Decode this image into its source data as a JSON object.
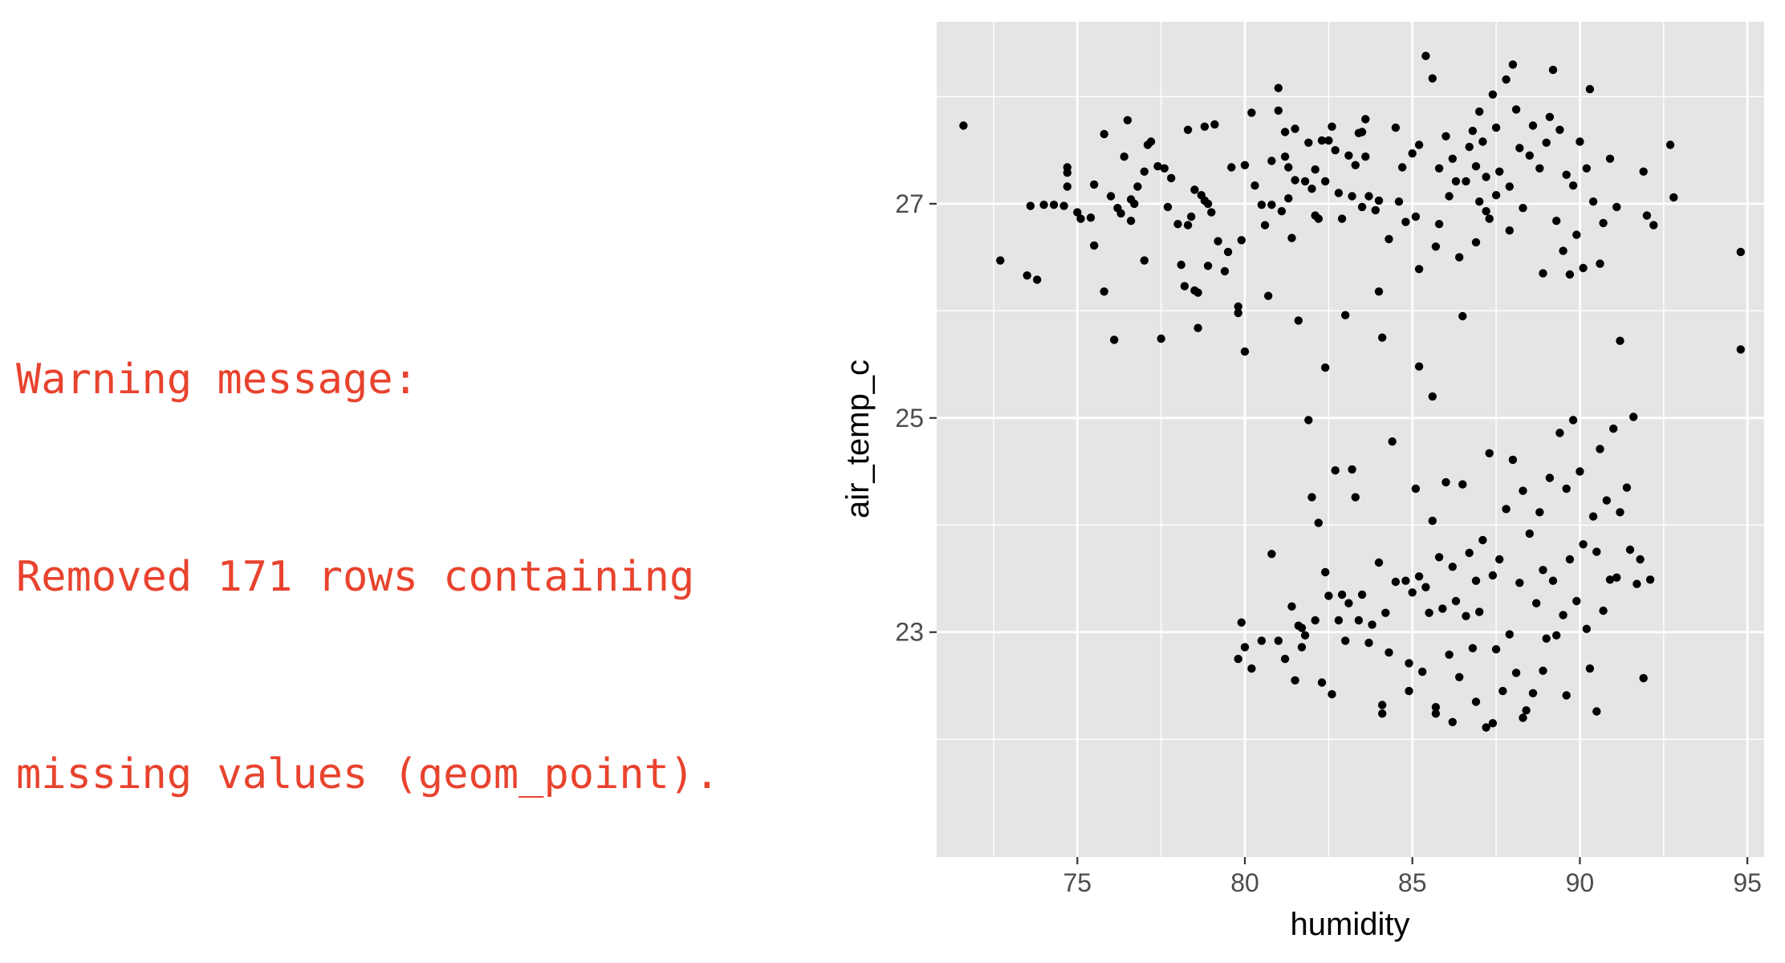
{
  "warning": {
    "line1": "Warning message:",
    "line2": "Removed 171 rows containing",
    "line3": "missing values (geom_point)."
  },
  "colors": {
    "warning_text": "#e8432e",
    "panel_background": "#e5e5e5",
    "grid": "#ffffff",
    "points": "#000000"
  },
  "chart_data": {
    "type": "scatter",
    "xlabel": "humidity",
    "ylabel": "air_temp_c",
    "xlim": [
      70.8,
      95.5
    ],
    "ylim": [
      20.9,
      28.7
    ],
    "xticks": [
      75,
      80,
      85,
      90,
      95
    ],
    "yticks": [
      23,
      25,
      27
    ],
    "grid": true,
    "series": [
      {
        "points": [
          [
            71.6,
            27.73
          ],
          [
            72.7,
            26.47
          ],
          [
            73.5,
            26.33
          ],
          [
            73.6,
            26.98
          ],
          [
            73.8,
            26.29
          ],
          [
            74.0,
            26.99
          ],
          [
            74.3,
            26.99
          ],
          [
            74.6,
            26.98
          ],
          [
            74.7,
            27.29
          ],
          [
            74.7,
            27.34
          ],
          [
            74.7,
            27.16
          ],
          [
            75.0,
            26.92
          ],
          [
            75.1,
            26.86
          ],
          [
            75.4,
            26.87
          ],
          [
            75.5,
            27.18
          ],
          [
            75.5,
            26.61
          ],
          [
            75.8,
            27.65
          ],
          [
            75.8,
            26.18
          ],
          [
            76.0,
            27.07
          ],
          [
            76.1,
            25.73
          ],
          [
            76.2,
            26.96
          ],
          [
            76.3,
            26.91
          ],
          [
            76.4,
            27.44
          ],
          [
            76.5,
            27.78
          ],
          [
            76.6,
            27.04
          ],
          [
            76.6,
            26.84
          ],
          [
            76.7,
            27.0
          ],
          [
            76.8,
            27.16
          ],
          [
            77.0,
            26.47
          ],
          [
            77.0,
            27.3
          ],
          [
            77.1,
            27.55
          ],
          [
            77.2,
            27.58
          ],
          [
            77.4,
            27.35
          ],
          [
            77.5,
            25.74
          ],
          [
            77.6,
            27.33
          ],
          [
            77.7,
            26.97
          ],
          [
            77.8,
            27.24
          ],
          [
            78.0,
            26.81
          ],
          [
            78.1,
            26.43
          ],
          [
            78.2,
            26.23
          ],
          [
            78.3,
            27.69
          ],
          [
            78.3,
            26.8
          ],
          [
            78.4,
            26.88
          ],
          [
            78.5,
            26.19
          ],
          [
            78.5,
            27.13
          ],
          [
            78.6,
            26.17
          ],
          [
            78.6,
            25.84
          ],
          [
            78.7,
            27.08
          ],
          [
            78.8,
            27.72
          ],
          [
            78.8,
            27.03
          ],
          [
            78.9,
            26.42
          ],
          [
            78.9,
            27.0
          ],
          [
            79.0,
            26.92
          ],
          [
            79.1,
            27.74
          ],
          [
            79.2,
            26.65
          ],
          [
            79.4,
            26.37
          ],
          [
            79.5,
            26.55
          ],
          [
            79.6,
            27.34
          ],
          [
            79.8,
            26.04
          ],
          [
            79.8,
            25.98
          ],
          [
            79.9,
            26.66
          ],
          [
            80.0,
            27.36
          ],
          [
            80.0,
            25.62
          ],
          [
            80.2,
            27.85
          ],
          [
            80.3,
            27.17
          ],
          [
            80.5,
            26.99
          ],
          [
            80.6,
            26.8
          ],
          [
            80.7,
            26.14
          ],
          [
            80.8,
            27.4
          ],
          [
            80.8,
            26.99
          ],
          [
            81.0,
            27.87
          ],
          [
            81.0,
            28.08
          ],
          [
            81.1,
            26.93
          ],
          [
            81.2,
            27.67
          ],
          [
            81.2,
            27.44
          ],
          [
            81.3,
            27.05
          ],
          [
            81.3,
            27.34
          ],
          [
            81.4,
            26.68
          ],
          [
            81.5,
            27.22
          ],
          [
            81.5,
            27.7
          ],
          [
            81.6,
            25.91
          ],
          [
            81.8,
            27.21
          ],
          [
            81.9,
            27.57
          ],
          [
            82.0,
            27.14
          ],
          [
            82.1,
            26.89
          ],
          [
            82.1,
            27.32
          ],
          [
            82.2,
            26.86
          ],
          [
            82.3,
            27.59
          ],
          [
            82.4,
            27.21
          ],
          [
            82.4,
            25.47
          ],
          [
            82.5,
            27.59
          ],
          [
            82.6,
            27.72
          ],
          [
            82.7,
            27.5
          ],
          [
            82.8,
            27.1
          ],
          [
            82.9,
            26.86
          ],
          [
            83.0,
            25.96
          ],
          [
            83.1,
            27.45
          ],
          [
            83.2,
            27.07
          ],
          [
            83.3,
            27.36
          ],
          [
            83.4,
            27.66
          ],
          [
            83.5,
            26.97
          ],
          [
            83.5,
            27.67
          ],
          [
            83.6,
            27.44
          ],
          [
            83.6,
            27.79
          ],
          [
            83.7,
            27.07
          ],
          [
            83.9,
            26.94
          ],
          [
            84.0,
            27.03
          ],
          [
            84.0,
            26.18
          ],
          [
            84.1,
            25.75
          ],
          [
            84.3,
            26.67
          ],
          [
            84.5,
            27.71
          ],
          [
            84.6,
            27.02
          ],
          [
            84.7,
            27.34
          ],
          [
            84.8,
            26.83
          ],
          [
            85.0,
            27.47
          ],
          [
            85.1,
            26.88
          ],
          [
            85.2,
            26.39
          ],
          [
            85.2,
            25.48
          ],
          [
            85.2,
            27.55
          ],
          [
            85.4,
            28.38
          ],
          [
            85.6,
            28.17
          ],
          [
            85.6,
            25.2
          ],
          [
            85.7,
            26.6
          ],
          [
            85.8,
            27.33
          ],
          [
            85.8,
            26.81
          ],
          [
            86.0,
            27.63
          ],
          [
            86.1,
            27.07
          ],
          [
            86.2,
            27.42
          ],
          [
            86.3,
            27.21
          ],
          [
            86.4,
            26.5
          ],
          [
            86.5,
            25.95
          ],
          [
            86.6,
            27.21
          ],
          [
            86.7,
            27.53
          ],
          [
            86.8,
            27.68
          ],
          [
            86.9,
            26.64
          ],
          [
            86.9,
            27.35
          ],
          [
            87.0,
            27.86
          ],
          [
            87.0,
            27.02
          ],
          [
            87.1,
            27.58
          ],
          [
            87.2,
            26.93
          ],
          [
            87.2,
            27.25
          ],
          [
            87.3,
            26.86
          ],
          [
            87.4,
            28.02
          ],
          [
            87.5,
            27.08
          ],
          [
            87.5,
            27.71
          ],
          [
            87.6,
            27.3
          ],
          [
            87.8,
            28.16
          ],
          [
            87.9,
            27.16
          ],
          [
            87.9,
            26.75
          ],
          [
            88.0,
            28.3
          ],
          [
            88.1,
            27.88
          ],
          [
            88.2,
            27.52
          ],
          [
            88.3,
            26.96
          ],
          [
            88.5,
            27.45
          ],
          [
            88.6,
            27.73
          ],
          [
            88.8,
            27.33
          ],
          [
            88.9,
            26.35
          ],
          [
            89.0,
            27.57
          ],
          [
            89.1,
            27.81
          ],
          [
            89.2,
            28.25
          ],
          [
            89.3,
            26.84
          ],
          [
            89.4,
            27.69
          ],
          [
            89.5,
            26.56
          ],
          [
            89.6,
            27.27
          ],
          [
            89.7,
            26.34
          ],
          [
            89.8,
            27.17
          ],
          [
            89.9,
            26.71
          ],
          [
            90.0,
            27.58
          ],
          [
            90.1,
            26.4
          ],
          [
            90.2,
            27.33
          ],
          [
            90.3,
            28.07
          ],
          [
            90.4,
            27.02
          ],
          [
            90.6,
            26.44
          ],
          [
            90.7,
            26.82
          ],
          [
            90.9,
            27.42
          ],
          [
            91.1,
            26.97
          ],
          [
            91.2,
            25.72
          ],
          [
            91.9,
            27.3
          ],
          [
            92.0,
            26.89
          ],
          [
            92.2,
            26.8
          ],
          [
            92.7,
            27.55
          ],
          [
            92.8,
            27.06
          ],
          [
            94.8,
            26.55
          ],
          [
            94.8,
            25.64
          ],
          [
            79.8,
            22.75
          ],
          [
            79.9,
            23.09
          ],
          [
            80.0,
            22.86
          ],
          [
            80.2,
            22.66
          ],
          [
            80.5,
            22.92
          ],
          [
            80.8,
            23.73
          ],
          [
            81.0,
            22.92
          ],
          [
            81.2,
            22.75
          ],
          [
            81.4,
            23.24
          ],
          [
            81.5,
            22.55
          ],
          [
            81.6,
            23.06
          ],
          [
            81.7,
            22.86
          ],
          [
            81.7,
            23.04
          ],
          [
            81.8,
            22.97
          ],
          [
            81.9,
            24.98
          ],
          [
            82.0,
            24.26
          ],
          [
            82.1,
            23.11
          ],
          [
            82.2,
            24.02
          ],
          [
            82.3,
            22.53
          ],
          [
            82.4,
            23.56
          ],
          [
            82.5,
            23.34
          ],
          [
            82.6,
            22.42
          ],
          [
            82.7,
            24.51
          ],
          [
            82.8,
            23.11
          ],
          [
            82.9,
            23.35
          ],
          [
            83.0,
            22.92
          ],
          [
            83.1,
            23.27
          ],
          [
            83.2,
            24.52
          ],
          [
            83.3,
            24.26
          ],
          [
            83.4,
            23.11
          ],
          [
            83.5,
            23.35
          ],
          [
            83.7,
            22.9
          ],
          [
            83.8,
            23.07
          ],
          [
            84.0,
            23.65
          ],
          [
            84.1,
            22.32
          ],
          [
            84.2,
            23.18
          ],
          [
            84.3,
            22.81
          ],
          [
            84.4,
            24.78
          ],
          [
            84.5,
            23.47
          ],
          [
            84.8,
            23.48
          ],
          [
            84.9,
            22.45
          ],
          [
            85.0,
            23.37
          ],
          [
            85.1,
            24.34
          ],
          [
            85.2,
            23.52
          ],
          [
            85.3,
            22.63
          ],
          [
            85.4,
            23.42
          ],
          [
            85.5,
            23.18
          ],
          [
            85.6,
            24.04
          ],
          [
            85.7,
            22.3
          ],
          [
            85.8,
            23.7
          ],
          [
            85.9,
            23.22
          ],
          [
            86.0,
            24.4
          ],
          [
            86.1,
            22.79
          ],
          [
            86.2,
            23.61
          ],
          [
            86.3,
            23.29
          ],
          [
            86.4,
            22.58
          ],
          [
            86.5,
            24.38
          ],
          [
            86.6,
            23.15
          ],
          [
            86.7,
            23.74
          ],
          [
            86.8,
            22.85
          ],
          [
            86.9,
            23.48
          ],
          [
            87.0,
            23.19
          ],
          [
            87.1,
            23.86
          ],
          [
            87.2,
            22.11
          ],
          [
            87.3,
            24.67
          ],
          [
            87.4,
            23.53
          ],
          [
            87.5,
            22.84
          ],
          [
            87.6,
            23.68
          ],
          [
            87.7,
            22.45
          ],
          [
            87.8,
            24.15
          ],
          [
            87.9,
            22.98
          ],
          [
            88.0,
            24.61
          ],
          [
            88.1,
            22.62
          ],
          [
            88.2,
            23.46
          ],
          [
            88.3,
            24.32
          ],
          [
            88.4,
            22.27
          ],
          [
            88.5,
            23.92
          ],
          [
            88.6,
            22.43
          ],
          [
            88.7,
            23.27
          ],
          [
            88.8,
            24.12
          ],
          [
            88.9,
            23.58
          ],
          [
            89.0,
            22.94
          ],
          [
            89.1,
            24.44
          ],
          [
            89.2,
            23.48
          ],
          [
            89.3,
            22.97
          ],
          [
            89.4,
            24.86
          ],
          [
            89.5,
            23.16
          ],
          [
            89.6,
            24.34
          ],
          [
            89.7,
            23.68
          ],
          [
            89.8,
            24.98
          ],
          [
            89.9,
            23.29
          ],
          [
            90.0,
            24.5
          ],
          [
            90.1,
            23.82
          ],
          [
            90.2,
            23.03
          ],
          [
            90.3,
            22.66
          ],
          [
            90.4,
            24.08
          ],
          [
            90.5,
            23.75
          ],
          [
            90.6,
            24.71
          ],
          [
            90.7,
            23.2
          ],
          [
            90.8,
            24.23
          ],
          [
            90.9,
            23.49
          ],
          [
            91.0,
            24.9
          ],
          [
            91.1,
            23.51
          ],
          [
            91.2,
            24.12
          ],
          [
            91.4,
            24.35
          ],
          [
            91.5,
            23.77
          ],
          [
            91.6,
            25.01
          ],
          [
            91.7,
            23.45
          ],
          [
            91.9,
            22.57
          ],
          [
            92.1,
            23.49
          ],
          [
            91.8,
            23.68
          ],
          [
            90.5,
            22.26
          ],
          [
            89.6,
            22.41
          ],
          [
            88.9,
            22.64
          ],
          [
            88.3,
            22.2
          ],
          [
            87.4,
            22.15
          ],
          [
            86.9,
            22.35
          ],
          [
            86.2,
            22.16
          ],
          [
            85.7,
            22.24
          ],
          [
            84.9,
            22.71
          ],
          [
            84.1,
            22.24
          ]
        ]
      }
    ]
  }
}
